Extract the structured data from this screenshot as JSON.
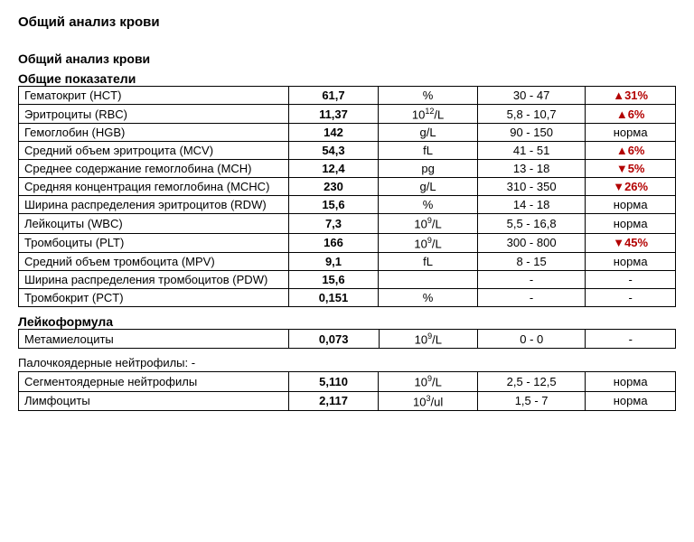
{
  "title": "Общий анализ крови",
  "section1_header1": "Общий анализ крови",
  "section1_header2": "Общие показатели",
  "table1": [
    {
      "name": "Гематокрит (HCT)",
      "value": "61,7",
      "unit_plain": "%",
      "range": "30 - 47",
      "status": "up",
      "status_text": "31%"
    },
    {
      "name": "Эритроциты (RBC)",
      "value": "11,37",
      "unit_base": "10",
      "unit_exp": "12",
      "unit_suffix": "/L",
      "range": "5,8 - 10,7",
      "status": "up",
      "status_text": "6%"
    },
    {
      "name": "Гемоглобин (HGB)",
      "value": "142",
      "unit_plain": "g/L",
      "range": "90 - 150",
      "status": "norm",
      "status_text": "норма"
    },
    {
      "name": "Средний объем эритроцита (MCV)",
      "value": "54,3",
      "unit_plain": "fL",
      "range": "41 - 51",
      "status": "up",
      "status_text": "6%"
    },
    {
      "name": "Среднее содержание гемоглобина (MCH)",
      "value": "12,4",
      "unit_plain": "pg",
      "range": "13 - 18",
      "status": "down",
      "status_text": "5%"
    },
    {
      "name": "Средняя концентрация гемоглобина (MCHC)",
      "value": "230",
      "unit_plain": "g/L",
      "range": "310 - 350",
      "status": "down",
      "status_text": "26%"
    },
    {
      "name": "Ширина распределения эритроцитов (RDW)",
      "value": "15,6",
      "unit_plain": "%",
      "range": "14 - 18",
      "status": "norm",
      "status_text": "норма"
    },
    {
      "name": "Лейкоциты (WBC)",
      "value": "7,3",
      "unit_base": "10",
      "unit_exp": "9",
      "unit_suffix": "/L",
      "range": "5,5 - 16,8",
      "status": "norm",
      "status_text": "норма"
    },
    {
      "name": "Тромбоциты (PLT)",
      "value": "166",
      "unit_base": "10",
      "unit_exp": "9",
      "unit_suffix": "/L",
      "range": "300 - 800",
      "status": "down",
      "status_text": "45%"
    },
    {
      "name": "Средний объем тромбоцита (MPV)",
      "value": "9,1",
      "unit_plain": "fL",
      "range": "8 - 15",
      "status": "norm",
      "status_text": "норма"
    },
    {
      "name": "Ширина распределения тромбоцитов (PDW)",
      "value": "15,6",
      "unit_plain": "",
      "range": "-",
      "status": "none",
      "status_text": "-"
    },
    {
      "name": "Тромбокрит (PCT)",
      "value": "0,151",
      "unit_plain": "%",
      "range": "-",
      "status": "none",
      "status_text": "-"
    }
  ],
  "section2_header": "Лейкоформула",
  "table2": [
    {
      "name": "Метамиелоциты",
      "value": "0,073",
      "unit_base": "10",
      "unit_exp": "9",
      "unit_suffix": "/L",
      "range": "0 - 0",
      "status": "none",
      "status_text": "-"
    }
  ],
  "note_line": "Палочкоядерные нейтрофилы: -",
  "table3": [
    {
      "name": "Сегментоядерные нейтрофилы",
      "value": "5,110",
      "unit_base": "10",
      "unit_exp": "9",
      "unit_suffix": "/L",
      "range": "2,5 - 12,5",
      "status": "norm",
      "status_text": "норма"
    },
    {
      "name": "Лимфоциты",
      "value": "2,117",
      "unit_base": "10",
      "unit_exp": "3",
      "unit_suffix": "/ul",
      "range": "1,5 - 7",
      "status": "norm",
      "status_text": "норма"
    }
  ],
  "glyphs": {
    "up": "▲",
    "down": "▼"
  },
  "colors": {
    "deviation": "#b30000",
    "text": "#000000",
    "border": "#000000",
    "bg": "#ffffff"
  }
}
